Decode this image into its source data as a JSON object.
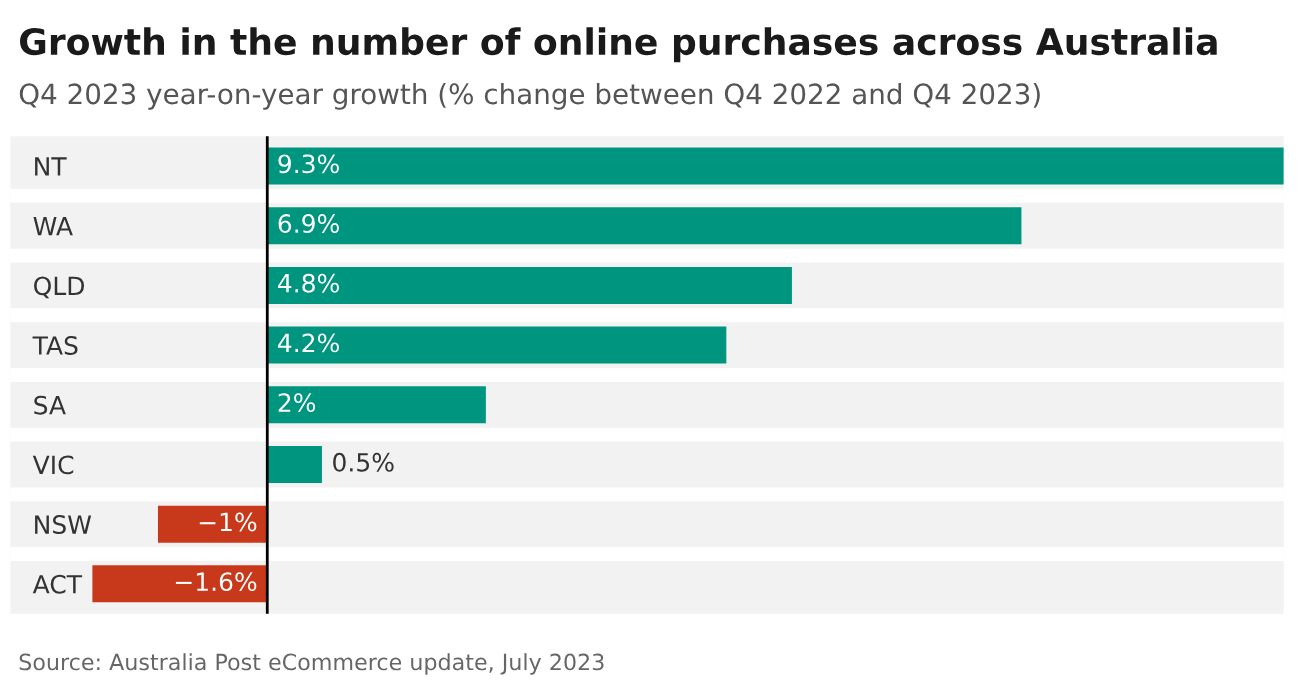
{
  "chart_data": {
    "type": "bar",
    "orientation": "horizontal",
    "title": "Growth in the number of online purchases across Australia",
    "subtitle": "Q4 2023 year-on-year growth (% change between Q4 2022 and Q4 2023)",
    "categories": [
      "NT",
      "WA",
      "QLD",
      "TAS",
      "SA",
      "VIC",
      "NSW",
      "ACT"
    ],
    "values": [
      9.3,
      6.9,
      4.8,
      4.2,
      2,
      0.5,
      -1,
      -1.6
    ],
    "colors": [
      "#00957f",
      "#00957f",
      "#00957f",
      "#00957f",
      "#00957f",
      "#00957f",
      "#c8381a",
      "#c8381a"
    ],
    "value_labels": [
      "9.3%",
      "6.9%",
      "4.8%",
      "4.2%",
      "2%",
      "0.5%",
      "−1%",
      "−1.6%"
    ],
    "xlim": [
      -2.35,
      9.3
    ],
    "tick_labels": "y",
    "annotations": [
      "Source: Australia Post eCommerce update, July 2023"
    ]
  }
}
